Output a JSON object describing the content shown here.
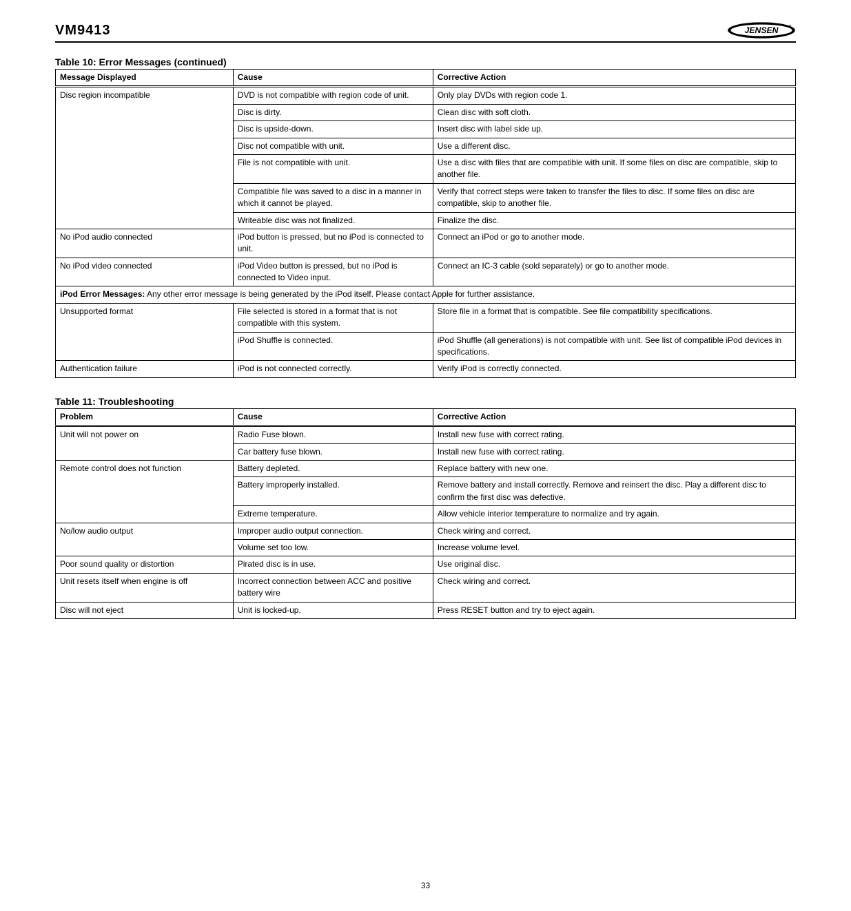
{
  "header": {
    "model": "VM9413"
  },
  "table1": {
    "title": "Table 10: Error Messages (continued)",
    "headers": [
      "Message Displayed",
      "Cause",
      "Corrective Action"
    ],
    "rows": [
      {
        "msg": "Disc region incompatible",
        "cause": "DVD is not compatible with region code of unit.",
        "action": "Only play DVDs with region code 1."
      },
      {
        "msg": "",
        "cause": "Disc is dirty.",
        "action": "Clean disc with soft cloth."
      },
      {
        "msg": "",
        "cause": "Disc is upside-down.",
        "action": "Insert disc with label side up."
      },
      {
        "msg": "",
        "cause": "Disc not compatible with unit.",
        "action": "Use a different disc."
      },
      {
        "msg": "",
        "cause": "File is not compatible with unit.",
        "action": "Use a disc with files that are compatible with unit. If some files on disc are compatible, skip to another file."
      },
      {
        "msg": "",
        "cause": "Compatible file was saved to a disc in a manner in which it cannot be played.",
        "action": "Verify that correct steps were taken to transfer the files to disc. If some files on disc are compatible, skip to another file."
      },
      {
        "msg": "",
        "cause": "Writeable disc was not finalized.",
        "action": "Finalize the disc."
      },
      {
        "msg": "No iPod audio connected",
        "cause": "iPod button is pressed, but no iPod is connected to unit.",
        "action": "Connect an iPod or go to another mode."
      },
      {
        "msg": "No iPod video connected",
        "cause": "iPod Video button is pressed, but no iPod is connected to Video input.",
        "action": "Connect an IC-3 cable (sold separately) or go to another mode."
      },
      {
        "msg_span": "iPod Error Messages:   Any other error message is being generated by the iPod itself. Please contact Apple for further assistance."
      },
      {
        "msg": "Unsupported format",
        "cause": "File selected is stored in a format that is not compatible with this system.",
        "action": "Store file in a format that is compatible. See file compatibility specifications."
      },
      {
        "msg": "",
        "cause": "iPod Shuffle is connected.",
        "action": "iPod Shuffle (all generations) is not compatible with unit. See list of compatible iPod devices in specifications."
      },
      {
        "msg": "Authentication failure",
        "cause": "iPod is not connected correctly.",
        "action": "Verify iPod is correctly connected."
      }
    ]
  },
  "table2": {
    "title": "Table 11: Troubleshooting",
    "headers": [
      "Problem",
      "Cause",
      "Corrective Action"
    ],
    "rows": [
      {
        "problem": "Unit will not power on",
        "cause": "Radio Fuse blown.",
        "action": "Install new fuse with correct rating."
      },
      {
        "problem": "",
        "cause": "Car battery fuse blown.",
        "action": "Install new fuse with correct rating."
      },
      {
        "problem": "Remote control does not function",
        "cause": "Battery depleted.",
        "action": "Replace battery with new one."
      },
      {
        "problem": "",
        "cause": "Battery improperly installed.",
        "action": "Remove battery and install correctly. Remove and reinsert the disc. Play a different disc to confirm the first disc was defective."
      },
      {
        "problem": "",
        "cause": "Extreme temperature.",
        "action": "Allow vehicle interior temperature to normalize and try again."
      },
      {
        "problem": "No/low audio output",
        "cause": "Improper audio output connection.",
        "action": "Check wiring and correct."
      },
      {
        "problem": "",
        "cause": "Volume set too low.",
        "action": "Increase volume level."
      },
      {
        "problem": "Poor sound quality or distortion",
        "cause": "Pirated disc is in use.",
        "action": "Use original disc."
      },
      {
        "problem": "Unit resets itself when engine is off",
        "cause": "Incorrect connection between ACC and positive battery wire",
        "action": "Check wiring and correct."
      },
      {
        "problem": "Disc will not eject",
        "cause": "Unit is locked-up.",
        "action": "Press RESET button and try to eject again."
      }
    ]
  },
  "footer": "33"
}
